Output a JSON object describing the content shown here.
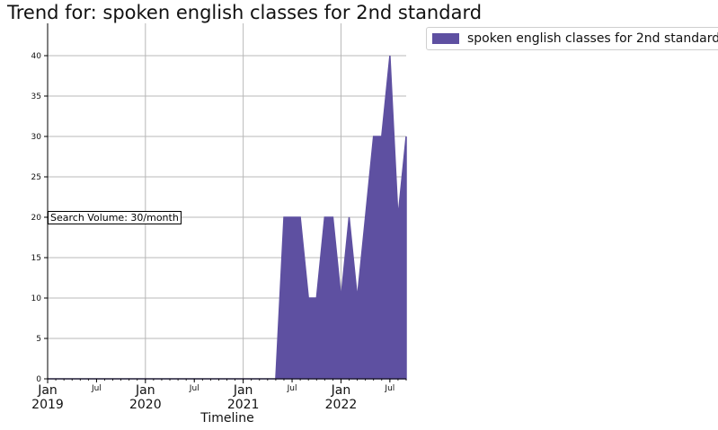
{
  "chart_data": {
    "type": "area",
    "title": "Trend for: spoken english classes for 2nd standard",
    "xlabel": "Timeline",
    "ylabel": "",
    "ylim": [
      0,
      44
    ],
    "yticks": [
      0,
      5,
      10,
      15,
      20,
      25,
      30,
      35,
      40
    ],
    "xlim": [
      "2019-01",
      "2022-09"
    ],
    "xticks": [
      {
        "date": "2019-01",
        "label": "Jan",
        "sublabel": "2019",
        "major": true
      },
      {
        "date": "2019-07",
        "label": "Jul",
        "sublabel": "",
        "major": false
      },
      {
        "date": "2020-01",
        "label": "Jan",
        "sublabel": "2020",
        "major": true
      },
      {
        "date": "2020-07",
        "label": "Jul",
        "sublabel": "",
        "major": false
      },
      {
        "date": "2021-01",
        "label": "Jan",
        "sublabel": "2021",
        "major": true
      },
      {
        "date": "2021-07",
        "label": "Jul",
        "sublabel": "",
        "major": false
      },
      {
        "date": "2022-01",
        "label": "Jan",
        "sublabel": "2022",
        "major": true
      },
      {
        "date": "2022-07",
        "label": "Jul",
        "sublabel": "",
        "major": false
      }
    ],
    "grid": true,
    "legend_position": "outside-top-right",
    "series": [
      {
        "name": "spoken english classes for 2nd standard",
        "color": "#5e50a1",
        "x": [
          "2019-01",
          "2019-02",
          "2019-03",
          "2019-04",
          "2019-05",
          "2019-06",
          "2019-07",
          "2019-08",
          "2019-09",
          "2019-10",
          "2019-11",
          "2019-12",
          "2020-01",
          "2020-02",
          "2020-03",
          "2020-04",
          "2020-05",
          "2020-06",
          "2020-07",
          "2020-08",
          "2020-09",
          "2020-10",
          "2020-11",
          "2020-12",
          "2021-01",
          "2021-02",
          "2021-03",
          "2021-04",
          "2021-05",
          "2021-06",
          "2021-07",
          "2021-08",
          "2021-09",
          "2021-10",
          "2021-11",
          "2021-12",
          "2022-01",
          "2022-02",
          "2022-03",
          "2022-04",
          "2022-05",
          "2022-06",
          "2022-07",
          "2022-08",
          "2022-09"
        ],
        "values": [
          0,
          0,
          0,
          0,
          0,
          0,
          0,
          0,
          0,
          0,
          0,
          0,
          0,
          0,
          0,
          0,
          0,
          0,
          0,
          0,
          0,
          0,
          0,
          0,
          0,
          0,
          0,
          0,
          0,
          20,
          20,
          20,
          10,
          10,
          20,
          20,
          10,
          20,
          10,
          20,
          30,
          30,
          40,
          20,
          30
        ]
      }
    ],
    "annotation": "Search Volume: 30/month"
  }
}
